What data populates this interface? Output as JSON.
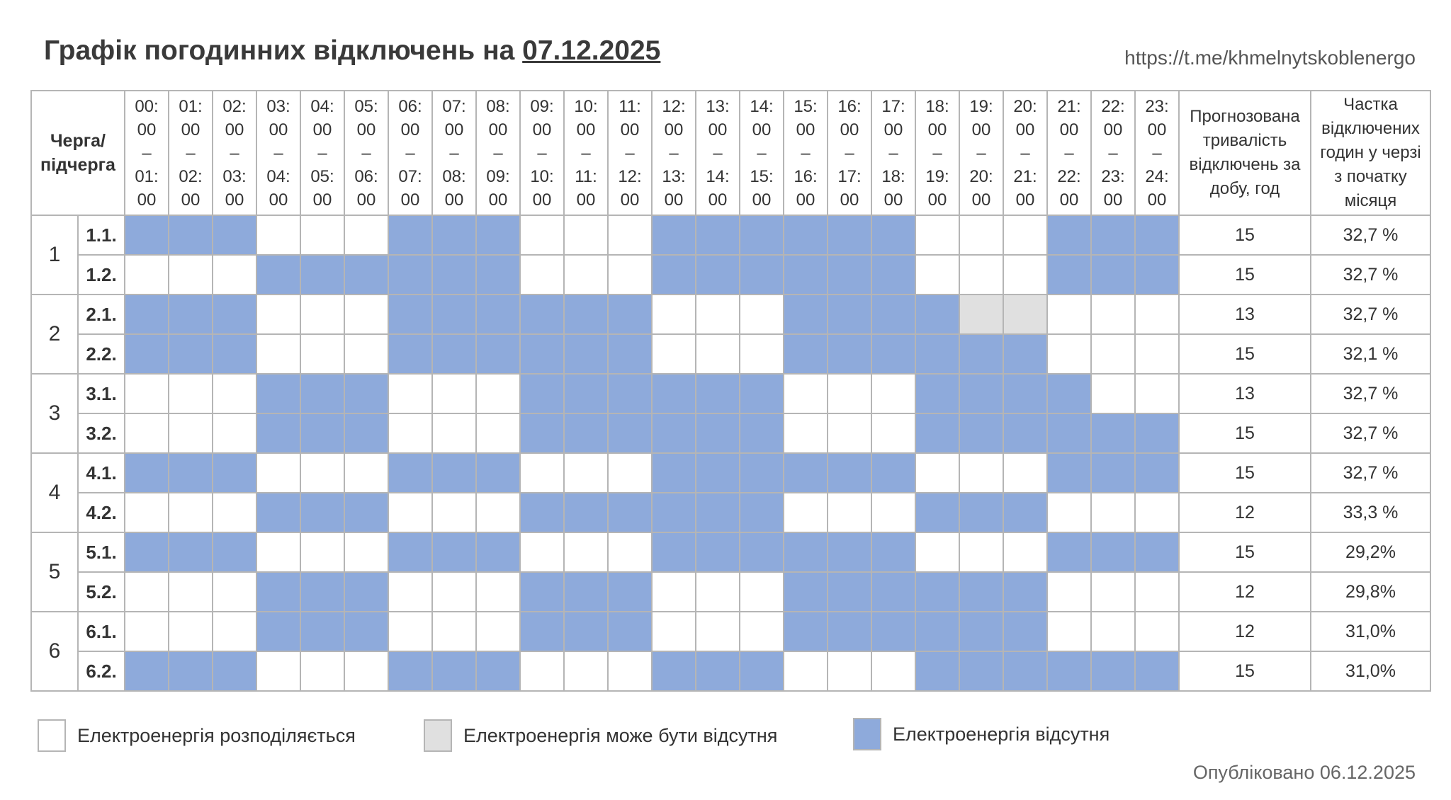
{
  "title": {
    "text": "Графік погодинних відключень на",
    "date": "07.12.2025"
  },
  "link": "https://t.me/khmelnytskoblenergo",
  "header": {
    "queue": [
      "Черга/",
      "підчерга"
    ],
    "hours": [
      [
        "00:",
        "00",
        "–",
        "01:",
        "00"
      ],
      [
        "01:",
        "00",
        "–",
        "02:",
        "00"
      ],
      [
        "02:",
        "00",
        "–",
        "03:",
        "00"
      ],
      [
        "03:",
        "00",
        "–",
        "04:",
        "00"
      ],
      [
        "04:",
        "00",
        "–",
        "05:",
        "00"
      ],
      [
        "05:",
        "00",
        "–",
        "06:",
        "00"
      ],
      [
        "06:",
        "00",
        "–",
        "07:",
        "00"
      ],
      [
        "07:",
        "00",
        "–",
        "08:",
        "00"
      ],
      [
        "08:",
        "00",
        "–",
        "09:",
        "00"
      ],
      [
        "09:",
        "00",
        "–",
        "10:",
        "00"
      ],
      [
        "10:",
        "00",
        "–",
        "11:",
        "00"
      ],
      [
        "11:",
        "00",
        "–",
        "12:",
        "00"
      ],
      [
        "12:",
        "00",
        "–",
        "13:",
        "00"
      ],
      [
        "13:",
        "00",
        "–",
        "14:",
        "00"
      ],
      [
        "14:",
        "00",
        "–",
        "15:",
        "00"
      ],
      [
        "15:",
        "00",
        "–",
        "16:",
        "00"
      ],
      [
        "16:",
        "00",
        "–",
        "17:",
        "00"
      ],
      [
        "17:",
        "00",
        "–",
        "18:",
        "00"
      ],
      [
        "18:",
        "00",
        "–",
        "19:",
        "00"
      ],
      [
        "19:",
        "00",
        "–",
        "20:",
        "00"
      ],
      [
        "20:",
        "00",
        "–",
        "21:",
        "00"
      ],
      [
        "21:",
        "00",
        "–",
        "22:",
        "00"
      ],
      [
        "22:",
        "00",
        "–",
        "23:",
        "00"
      ],
      [
        "23:",
        "00",
        "–",
        "24:",
        "00"
      ]
    ],
    "duration": [
      "Прогнозована",
      "тривалість",
      "відключень за",
      "добу, год"
    ],
    "share": [
      "Частка",
      "відключених",
      "годин у черзі",
      "з початку",
      "місяця"
    ]
  },
  "groups": [
    {
      "queue": "1",
      "rows": [
        {
          "sub": "1.1.",
          "states": "BBBWWWBBBWWWBBBBBBWWWBBB",
          "duration": "15",
          "share": "32,7 %"
        },
        {
          "sub": "1.2.",
          "states": "WWWBBBBBBWWWBBBBBBWWWBBB",
          "duration": "15",
          "share": "32,7 %"
        }
      ]
    },
    {
      "queue": "2",
      "rows": [
        {
          "sub": "2.1.",
          "states": "BBBWWWBBBBBBWWWBBBBGGWWW",
          "duration": "13",
          "share": "32,7 %"
        },
        {
          "sub": "2.2.",
          "states": "BBBWWWBBBBBBWWWBBBBBBWWW",
          "duration": "15",
          "share": "32,1 %"
        }
      ]
    },
    {
      "queue": "3",
      "rows": [
        {
          "sub": "3.1.",
          "states": "WWWBBBWWWBBBBBBWWWBBBBWW",
          "duration": "13",
          "share": "32,7 %"
        },
        {
          "sub": "3.2.",
          "states": "WWWBBBWWWBBBBBBWWWBBBBBB",
          "duration": "15",
          "share": "32,7 %"
        }
      ]
    },
    {
      "queue": "4",
      "rows": [
        {
          "sub": "4.1.",
          "states": "BBBWWWBBBWWWBBBBBBWWWBBB",
          "duration": "15",
          "share": "32,7 %"
        },
        {
          "sub": "4.2.",
          "states": "WWWBBBWWWBBBBBBWWWBBBWWW",
          "duration": "12",
          "share": "33,3 %"
        }
      ]
    },
    {
      "queue": "5",
      "rows": [
        {
          "sub": "5.1.",
          "states": "BBBWWWBBBWWWBBBBBBWWWBBB",
          "duration": "15",
          "share": "29,2%"
        },
        {
          "sub": "5.2.",
          "states": "WWWBBBWWWBBBWWWBBBBBBWWW",
          "duration": "12",
          "share": "29,8%"
        }
      ]
    },
    {
      "queue": "6",
      "rows": [
        {
          "sub": "6.1.",
          "states": "WWWBBBWWWBBBWWWBBBBBBWWW",
          "duration": "12",
          "share": "31,0%"
        },
        {
          "sub": "6.2.",
          "states": "BBBWWWBBBWWWBBBWWWBBBBBB",
          "duration": "15",
          "share": "31,0%"
        }
      ]
    }
  ],
  "legend": [
    {
      "label": "Електроенергія розподіляється",
      "color": "#ffffff"
    },
    {
      "label": "Електроенергія може бути відсутня",
      "color": "#e0e0e0"
    },
    {
      "label": "Електроенергія відсутня",
      "color": "#8eaadb"
    }
  ],
  "published": "Опубліковано 06.12.2025"
}
